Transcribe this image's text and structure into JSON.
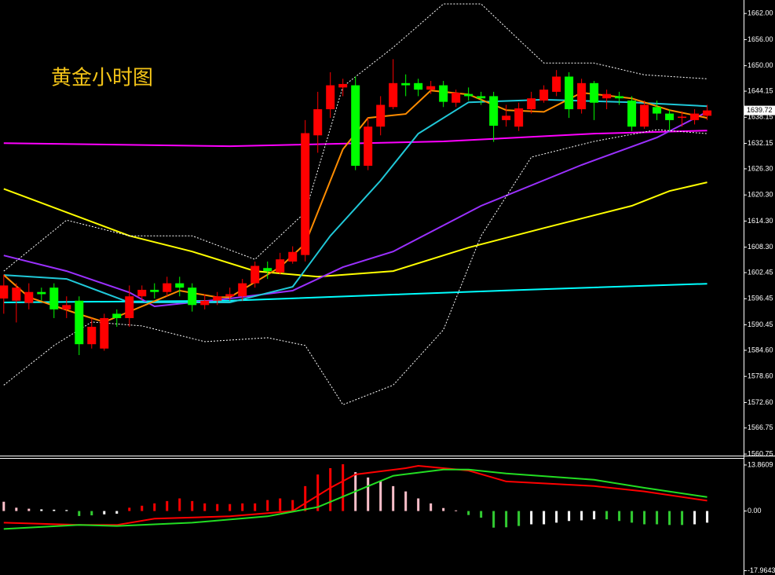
{
  "chart_data": [
    {
      "type": "candlestick",
      "title": "黄金小时图",
      "xlim": [
        -0.3,
        58.9
      ],
      "ylim": [
        1560.4,
        1665.1
      ],
      "yticks": [
        {
          "value": 1662,
          "label": "1662.00"
        },
        {
          "value": 1656,
          "label": "1656.00"
        },
        {
          "value": 1650,
          "label": "1650.00"
        },
        1644.15,
        1638.15,
        1632.15,
        {
          "value": 1626.3,
          "label": "1626.30"
        },
        {
          "value": 1620.3,
          "label": "1620.30"
        },
        {
          "value": 1614.3,
          "label": "1614.30"
        },
        {
          "value": 1608.3,
          "label": "1608.30"
        },
        1602.45,
        1596.45,
        1590.45,
        {
          "value": 1584.6,
          "label": "1584.60"
        },
        {
          "value": 1578.6,
          "label": "1578.60"
        },
        {
          "value": 1572.6,
          "label": "1572.60"
        },
        1566.75,
        1560.75
      ],
      "current_price": 1639.72,
      "up_color": "#ff0000",
      "down_color": "#00ff00",
      "open": [
        1596.5,
        1596,
        1595.5,
        1598,
        1599,
        1594,
        1596,
        1586,
        1585,
        1593,
        1592,
        1597,
        1598.5,
        1598,
        1600,
        1599,
        1595,
        1596,
        1597,
        1597,
        1600,
        1603.5,
        1602.5,
        1605,
        1606.5,
        1634,
        1640,
        1645,
        1645.5,
        1627,
        1636,
        1640.5,
        1646,
        1646,
        1644.5,
        1645.5,
        1641.5,
        1643.5,
        1643,
        1643,
        1637.5,
        1636,
        1640,
        1642,
        1644,
        1647.5,
        1640,
        1646,
        1642.5,
        1643,
        1642,
        1636,
        1640.5,
        1639,
        1638,
        1637.5,
        1638.5
      ],
      "high": [
        1602,
        1600,
        1600,
        1599,
        1600,
        1597,
        1597,
        1592,
        1593,
        1594,
        1599.5,
        1599.5,
        1600,
        1601.5,
        1601.5,
        1600,
        1597.5,
        1598,
        1599,
        1601,
        1605,
        1605,
        1607,
        1608.5,
        1637.5,
        1644,
        1648.5,
        1647,
        1647.5,
        1638,
        1643,
        1651.5,
        1648,
        1647,
        1646.5,
        1646.5,
        1644.5,
        1645,
        1644,
        1644,
        1641,
        1641.5,
        1644,
        1645.5,
        1649,
        1648.5,
        1647,
        1646.5,
        1644.5,
        1644,
        1643,
        1642,
        1642,
        1640,
        1639.5,
        1640,
        1641
      ],
      "low": [
        1593,
        1591,
        1594,
        1596,
        1592,
        1592,
        1583.5,
        1585,
        1584.5,
        1590,
        1590,
        1596,
        1596.5,
        1597,
        1597,
        1593.5,
        1594,
        1595,
        1596,
        1596,
        1599,
        1601,
        1602,
        1604.5,
        1605,
        1630,
        1638,
        1643,
        1626,
        1626,
        1634,
        1640,
        1643,
        1643,
        1643.5,
        1640.5,
        1640.5,
        1642,
        1641,
        1632.5,
        1636,
        1635,
        1639,
        1641.5,
        1643,
        1638,
        1639,
        1637.5,
        1640,
        1641,
        1635,
        1635.5,
        1637.5,
        1635,
        1636,
        1636.5,
        1637.5
      ],
      "close": [
        1599.5,
        1599,
        1598,
        1597.5,
        1594,
        1595,
        1586,
        1590,
        1592,
        1592,
        1597,
        1598.5,
        1598,
        1600,
        1599,
        1595,
        1596,
        1597,
        1597.5,
        1600,
        1604,
        1602.8,
        1605.5,
        1607.2,
        1634.5,
        1640,
        1645.5,
        1645.8,
        1627,
        1636,
        1641,
        1646,
        1645.5,
        1644.5,
        1645.3,
        1641.7,
        1643.8,
        1643,
        1642.5,
        1636.2,
        1638.5,
        1640.2,
        1642.5,
        1644.5,
        1647.5,
        1640,
        1646,
        1641.5,
        1643.5,
        1642.5,
        1636,
        1641,
        1639,
        1637.5,
        1638.3,
        1639,
        1639.72
      ],
      "series": [
        {
          "color": "#ff00ff",
          "style": "solid",
          "x": [
            0,
            18,
            35,
            47,
            56
          ],
          "values": [
            1632.2,
            1631.5,
            1632.6,
            1634.4,
            1635.1
          ]
        },
        {
          "color": "#00ffff",
          "style": "solid",
          "x": [
            0,
            18,
            31,
            43,
            56
          ],
          "values": [
            1595.6,
            1596,
            1597.4,
            1598.65,
            1599.9
          ]
        },
        {
          "color": "#ffff00",
          "style": "solid",
          "x": [
            0,
            5,
            10,
            15,
            20,
            25,
            31,
            37,
            43,
            50,
            53,
            56
          ],
          "values": [
            1621.7,
            1616.3,
            1610.9,
            1607.3,
            1602.8,
            1601.5,
            1602.8,
            1608.2,
            1612.7,
            1617.8,
            1621.2,
            1623.2
          ]
        },
        {
          "color": "#9b30ff",
          "style": "solid",
          "x": [
            0,
            5,
            10,
            12,
            18,
            23,
            27,
            31,
            38,
            46,
            52,
            56
          ],
          "values": [
            1606.4,
            1602.8,
            1597.9,
            1594.7,
            1596.5,
            1598.3,
            1603.7,
            1607.3,
            1617.8,
            1627.2,
            1633.5,
            1639.4
          ]
        },
        {
          "color": "#20c8d8",
          "style": "solid",
          "x": [
            0,
            5,
            10,
            18,
            23,
            26,
            30,
            33,
            37,
            43,
            50,
            56
          ],
          "values": [
            1601.9,
            1601,
            1595.6,
            1595.6,
            1599.2,
            1610.9,
            1623.6,
            1634.4,
            1641.6,
            1642.2,
            1641.6,
            1640.7
          ]
        },
        {
          "color": "#ff8c00",
          "style": "solid",
          "x": [
            0,
            2,
            6,
            8,
            11,
            14,
            17,
            18,
            22,
            24,
            27,
            29,
            32,
            34,
            37,
            40,
            43,
            46,
            50,
            53,
            56
          ],
          "values": [
            1601.9,
            1596.8,
            1592.9,
            1591.1,
            1594.7,
            1598.3,
            1596.8,
            1596.8,
            1603.7,
            1609.1,
            1630.8,
            1638,
            1638.9,
            1644.3,
            1643.4,
            1639.8,
            1639.4,
            1643.8,
            1642.5,
            1639.8,
            1638
          ]
        },
        {
          "color": "#ffffff",
          "style": "dashed",
          "x": [
            0,
            5,
            10,
            15,
            20,
            24,
            27,
            31,
            35,
            38,
            41,
            43,
            47,
            51,
            56
          ],
          "values": [
            1602.8,
            1614.5,
            1610.9,
            1610.9,
            1605.5,
            1616.3,
            1645.2,
            1654.2,
            1664.2,
            1664.2,
            1656,
            1650.6,
            1650.6,
            1647.9,
            1647
          ]
        },
        {
          "color": "#ffffff",
          "style": "dashed",
          "x": [
            0,
            4,
            7,
            11,
            16,
            21,
            24,
            27,
            31,
            35,
            38,
            42,
            47,
            52,
            56
          ],
          "values": [
            1576.6,
            1585.7,
            1591.1,
            1590.2,
            1586.6,
            1587.5,
            1585.7,
            1572.1,
            1576.6,
            1589.3,
            1610.9,
            1629,
            1632.6,
            1635.3,
            1634.4
          ]
        }
      ]
    },
    {
      "type": "macd",
      "xlim": [
        -0.3,
        58.9
      ],
      "ylim": [
        -19.26,
        15.74
      ],
      "yticks": [
        13.8609,
        {
          "value": 0,
          "label": "0.00"
        },
        -17.9643
      ],
      "histogram": {
        "values": [
          2.8,
          1.0,
          0.7,
          0.5,
          0.4,
          0.3,
          -1.5,
          -1.3,
          -1.0,
          -0.8,
          1.0,
          1.6,
          2.3,
          3.0,
          3.8,
          3.0,
          2.3,
          2.1,
          2.1,
          2.3,
          2.3,
          3.3,
          3.8,
          3.3,
          7.5,
          11.0,
          12.9,
          14.1,
          11.7,
          10.1,
          8.9,
          7.5,
          5.9,
          3.8,
          2.3,
          0.9,
          0.2,
          -1.2,
          -2.0,
          -5.0,
          -4.9,
          -4.5,
          -4.0,
          -4.0,
          -3.5,
          -3.0,
          -2.8,
          -2.5,
          -2.5,
          -3.0,
          -3.5,
          -4.0,
          -4.0,
          -4.2,
          -4.2,
          -4.0,
          -3.5
        ],
        "colors": [
          "#ffc0cb",
          "#ffc0cb",
          "#ffc0cb",
          "#ffffff",
          "#ffffff",
          "#ffffff",
          "#32cd32",
          "#32cd32",
          "#ffffff",
          "#ffffff",
          "#ff0000",
          "#ff0000",
          "#ff0000",
          "#ff0000",
          "#ff0000",
          "#ff0000",
          "#ff0000",
          "#ff0000",
          "#ff0000",
          "#ff0000",
          "#ff0000",
          "#ff0000",
          "#ff0000",
          "#ff0000",
          "#ff0000",
          "#ff0000",
          "#ff0000",
          "#ff0000",
          "#ffc0cb",
          "#ffc0cb",
          "#ffc0cb",
          "#ffc0cb",
          "#ffc0cb",
          "#ffc0cb",
          "#ffc0cb",
          "#ffc0cb",
          "#ffc0cb",
          "#32cd32",
          "#32cd32",
          "#32cd32",
          "#32cd32",
          "#32cd32",
          "#ffffff",
          "#ffffff",
          "#ffffff",
          "#ffffff",
          "#ffffff",
          "#ffffff",
          "#32cd32",
          "#32cd32",
          "#32cd32",
          "#32cd32",
          "#32cd32",
          "#32cd32",
          "#32cd32",
          "#ffffff",
          "#ffffff"
        ]
      },
      "series": [
        {
          "color": "#ff0000",
          "style": "solid",
          "x": [
            0,
            6,
            9,
            12,
            18,
            23,
            26,
            28,
            32,
            33,
            37,
            40,
            47,
            51,
            56
          ],
          "values": [
            -3.5,
            -4.2,
            -4.2,
            -2.3,
            -1.6,
            0,
            7.0,
            11.0,
            12.9,
            13.6,
            12.2,
            8.9,
            7.5,
            5.9,
            3.1
          ]
        },
        {
          "color": "#22dd22",
          "style": "solid",
          "x": [
            0,
            6,
            9,
            15,
            21,
            25,
            28,
            31,
            35,
            37,
            40,
            47,
            51,
            56
          ],
          "values": [
            -5.4,
            -4.2,
            -4.5,
            -3.5,
            -1.6,
            1.2,
            5.9,
            10.6,
            12.5,
            12.5,
            11.3,
            9.4,
            7.0,
            4.2
          ]
        }
      ]
    }
  ]
}
